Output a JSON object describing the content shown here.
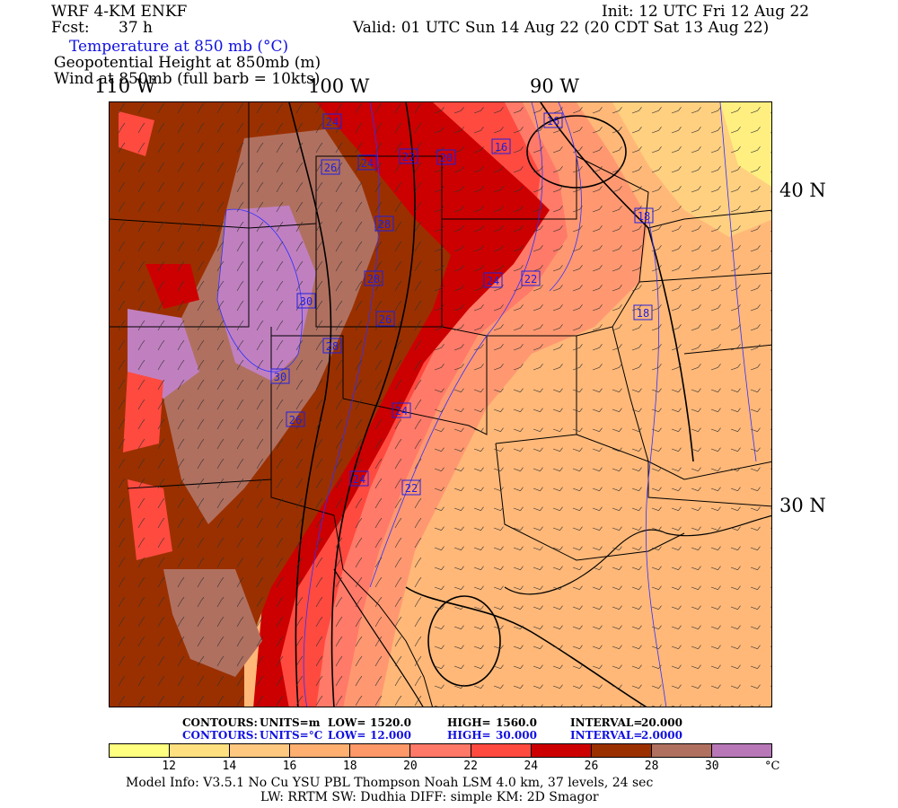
{
  "header": {
    "model": "WRF 4-KM ENKF",
    "fcst_label": "Fcst:",
    "fcst_value": "37 h",
    "init": "Init: 12 UTC Fri 12 Aug 22",
    "valid": "Valid: 01 UTC Sun 14 Aug 22 (20 CDT Sat 13 Aug 22)",
    "field1": "Temperature at 850 mb (°C)",
    "field2": "Geopotential Height at 850mb (m)",
    "field3": "Wind at 850mb (full barb = 10kts)"
  },
  "axes": {
    "lon_labels": [
      "110 W",
      "100 W",
      "90 W"
    ],
    "lat_labels": [
      "40 N",
      "30 N"
    ]
  },
  "map": {
    "temp_labels": [
      "24",
      "26",
      "24",
      "22",
      "20",
      "16",
      "16",
      "18",
      "28",
      "28",
      "24",
      "22",
      "18",
      "30",
      "26",
      "28",
      "30",
      "26",
      "24",
      "24",
      "22"
    ],
    "colors": {
      "t12": "#ffff80",
      "t14": "#ffe080",
      "t16": "#ffc080",
      "t18": "#ffa070",
      "t20": "#ff8868",
      "t22": "#ff6060",
      "t24": "#ff3838",
      "t26": "#cc0000",
      "t28": "#9a3000",
      "t30": "#b07060",
      "t32": "#c080c0"
    }
  },
  "contour_info": {
    "height": {
      "label": "CONTOURS:",
      "units": "UNITS=m",
      "low_label": "LOW=",
      "low": "1520.0",
      "high_label": "HIGH=",
      "high": "1560.0",
      "interval_label": "INTERVAL=",
      "interval": "20.000"
    },
    "temp": {
      "label": "CONTOURS:",
      "units": "UNITS=°C",
      "low_label": "LOW=",
      "low": "12.000",
      "high_label": "HIGH=",
      "high": "30.000",
      "interval_label": "INTERVAL=",
      "interval": "2.0000"
    }
  },
  "colorbar": {
    "colors": [
      "#ffff80",
      "#ffe080",
      "#ffc880",
      "#ffb070",
      "#ff9868",
      "#ff7868",
      "#ff4a40",
      "#cc0000",
      "#9a3000",
      "#b07060",
      "#b878b8"
    ],
    "ticks": [
      "12",
      "14",
      "16",
      "18",
      "20",
      "22",
      "24",
      "26",
      "28",
      "30"
    ],
    "unit": "°C"
  },
  "footer": {
    "line1": "Model Info: V3.5.1   No Cu    YSU PBL  Thompson     Noah LSM  4.0 km,  37 levels,   24 sec",
    "line2": "LW: RRTM  SW: Dudhia  DIFF: simple  KM: 2D Smagor"
  }
}
